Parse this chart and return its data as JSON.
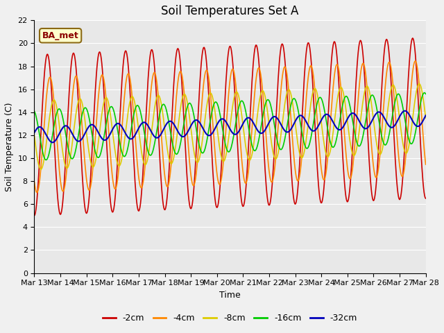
{
  "title": "Soil Temperatures Set A",
  "xlabel": "Time",
  "ylabel": "Soil Temperature (C)",
  "annotation": "BA_met",
  "ylim": [
    0,
    22
  ],
  "yticks": [
    0,
    2,
    4,
    6,
    8,
    10,
    12,
    14,
    16,
    18,
    20,
    22
  ],
  "background_color": "#f0f0f0",
  "plot_bg_color": "#e8e8e8",
  "series": [
    {
      "label": "-2cm",
      "color": "#cc0000",
      "linewidth": 1.2
    },
    {
      "label": "-4cm",
      "color": "#ff8800",
      "linewidth": 1.2
    },
    {
      "label": "-8cm",
      "color": "#ddcc00",
      "linewidth": 1.2
    },
    {
      "label": "-16cm",
      "color": "#00cc00",
      "linewidth": 1.2
    },
    {
      "label": "-32cm",
      "color": "#0000bb",
      "linewidth": 1.5
    }
  ],
  "xtick_labels": [
    "Mar 13",
    "Mar 14",
    "Mar 15",
    "Mar 16",
    "Mar 17",
    "Mar 18",
    "Mar 19",
    "Mar 20",
    "Mar 21",
    "Mar 22",
    "Mar 23",
    "Mar 24",
    "Mar 25",
    "Mar 26",
    "Mar 27",
    "Mar 28"
  ],
  "title_fontsize": 12,
  "axis_label_fontsize": 9,
  "tick_fontsize": 8,
  "n_days": 15,
  "pts_per_day": 48
}
